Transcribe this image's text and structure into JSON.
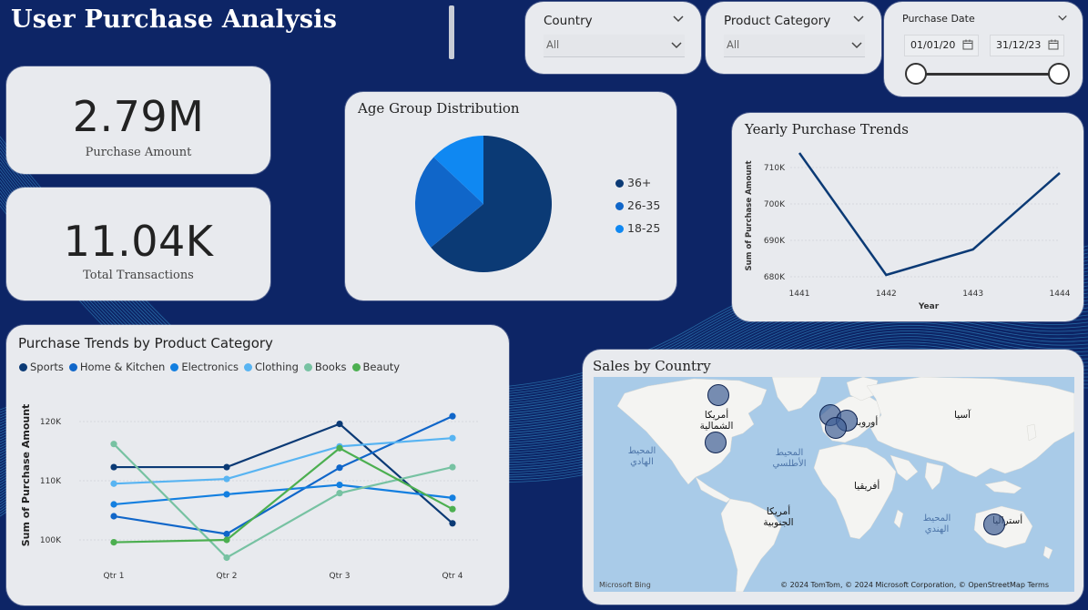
{
  "header": {
    "title": "User Purchase Analysis"
  },
  "colors": {
    "background": "#0d2566",
    "card": "#e8eaee",
    "dark_blue": "#0b3a75",
    "mid_blue": "#1066c9",
    "light_blue": "#0f88f2"
  },
  "filters": {
    "country": {
      "label": "Country",
      "value": "All"
    },
    "category": {
      "label": "Product Category",
      "value": "All"
    },
    "date": {
      "label": "Purchase Date",
      "start": "01/01/20",
      "end": "31/12/23"
    }
  },
  "kpis": {
    "amount": {
      "value": "2.79M",
      "label": "Purchase Amount"
    },
    "transactions": {
      "value": "11.04K",
      "label": "Total Transactions"
    }
  },
  "age_chart": {
    "title": "Age Group Distribution",
    "legend": [
      {
        "label": "36+",
        "color": "#0b3a75"
      },
      {
        "label": "26-35",
        "color": "#1066c9"
      },
      {
        "label": "18-25",
        "color": "#0f88f2"
      }
    ]
  },
  "yearly_chart": {
    "title": "Yearly Purchase Trends",
    "ylabel": "Sum of Purchase Amount",
    "xlabel": "Year",
    "yticks": [
      "710K",
      "700K",
      "690K",
      "680K"
    ],
    "xticks": [
      "1441",
      "1442",
      "1443",
      "1444"
    ]
  },
  "category_chart": {
    "title": "Purchase Trends by Product Category",
    "ylabel": "Sum of Purchase Amount",
    "yticks": [
      "120K",
      "110K",
      "100K"
    ],
    "xticks": [
      "Qtr 1",
      "Qtr 2",
      "Qtr 3",
      "Qtr 4"
    ]
  },
  "map": {
    "title": "Sales by Country",
    "labels": {
      "north_america": "أمريكا الشمالية",
      "south_america": "أمريكا الجنوبية",
      "europe": "أوروبا",
      "asia": "آسيا",
      "africa": "أفريقيا",
      "australia": "أستراليا",
      "pacific": "المحيط الهادي",
      "atlantic": "المحيط الأطلسي",
      "indian": "المحيط الهندي"
    },
    "attribution": "© 2024 TomTom, © 2024 Microsoft Corporation, © OpenStreetMap Terms",
    "provider": "Microsoft Bing"
  },
  "chart_data": [
    {
      "type": "pie",
      "title": "Age Group Distribution",
      "categories": [
        "36+",
        "26-35",
        "18-25"
      ],
      "values": [
        0.64,
        0.23,
        0.13
      ]
    },
    {
      "type": "line",
      "title": "Yearly Purchase Trends",
      "xlabel": "Year",
      "ylabel": "Sum of Purchase Amount",
      "x": [
        1441,
        1442,
        1443,
        1444
      ],
      "series": [
        {
          "values": [
            714000,
            680500,
            687500,
            708500
          ]
        }
      ],
      "ylim": [
        678000,
        715000
      ]
    },
    {
      "type": "line",
      "title": "Purchase Trends by Product Category",
      "ylabel": "Sum of Purchase Amount",
      "categories": [
        "Qtr 1",
        "Qtr 2",
        "Qtr 3",
        "Qtr 4"
      ],
      "ylim": [
        96000,
        124000
      ],
      "series": [
        {
          "name": "Sports",
          "color": "#0b3a75",
          "values": [
            112300,
            112300,
            119600,
            102800
          ]
        },
        {
          "name": "Home & Kitchen",
          "color": "#1066c9",
          "values": [
            104000,
            101000,
            112200,
            120900
          ]
        },
        {
          "name": "Electronics",
          "color": "#137fe0",
          "values": [
            106000,
            107700,
            109300,
            107100
          ]
        },
        {
          "name": "Clothing",
          "color": "#58b4f2",
          "values": [
            109500,
            110300,
            115800,
            117200
          ]
        },
        {
          "name": "Books",
          "color": "#77c2a2",
          "values": [
            116200,
            97000,
            107900,
            112300
          ]
        },
        {
          "name": "Beauty",
          "color": "#4caf50",
          "values": [
            99600,
            100000,
            115500,
            105200
          ]
        }
      ]
    }
  ]
}
